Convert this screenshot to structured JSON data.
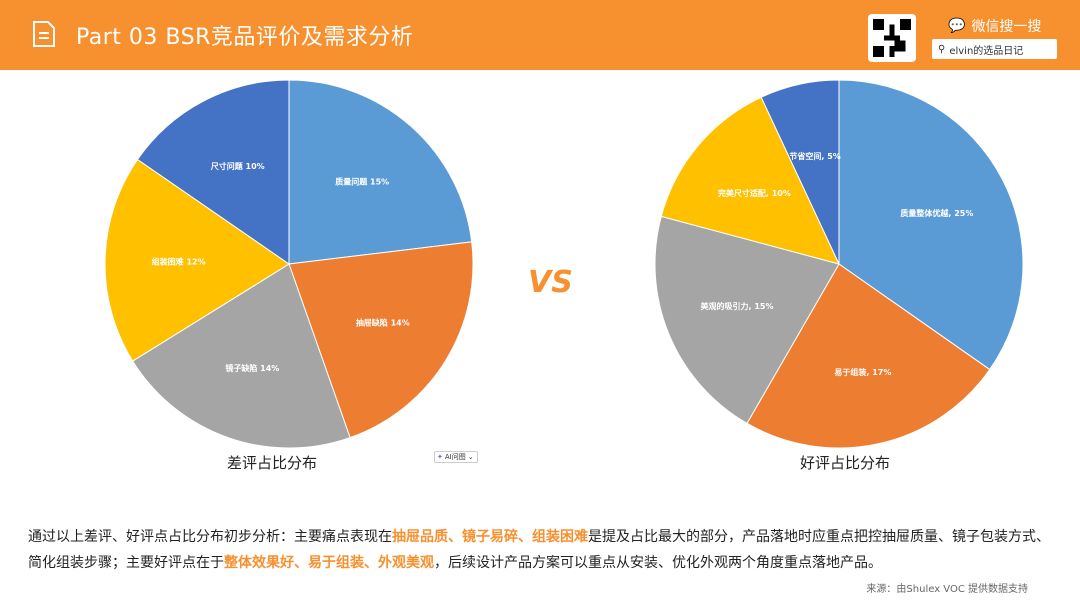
{
  "header": {
    "title": "Part 03  BSR竞品评价及需求分析",
    "wechat_label": "微信搜一搜",
    "search_value": "elvin的选品日记"
  },
  "vs": "VS",
  "ai_button": "AI问图",
  "colors": [
    "#5B9BD5",
    "#ED7D31",
    "#A5A5A5",
    "#FFC000",
    "#4472C4"
  ],
  "chart_data": [
    {
      "type": "pie",
      "title": "差评占比分布",
      "categories": [
        "质量问题",
        "抽屉缺陷",
        "镜子缺陷",
        "组装困难",
        "尺寸问题"
      ],
      "values": [
        15,
        14,
        14,
        12,
        10
      ],
      "labels": [
        "质量问题 15%",
        "抽屉缺陷 14%",
        "镜子缺陷 14%",
        "组装困难 12%",
        "尺寸问题 10%"
      ]
    },
    {
      "type": "pie",
      "title": "好评占比分布",
      "categories": [
        "质量整体优越",
        "易于组装",
        "美观的吸引力",
        "完美尺寸适配",
        "节省空间"
      ],
      "values": [
        25,
        17,
        15,
        10,
        5
      ],
      "labels": [
        "质量整体优越, 25%",
        "易于组装, 17%",
        "美观的吸引力, 15%",
        "完美尺寸适配, 10%",
        "节省空间, 5%"
      ]
    }
  ],
  "summary": {
    "p1": "通过以上差评、好评点占比分布初步分析：主要痛点表现在",
    "h1": "抽屉品质、镜子易碎、组装困难",
    "p2": "是提及占比最大的部分，产品落地时应重点把控抽屉质量、镜子包装方式、简化组装步骤；主要好评点在于",
    "h2": "整体效果好、易于组装、外观美观",
    "p3": "，后续设计产品方案可以重点从安装、优化外观两个角度重点落地产品。"
  },
  "source": "来源：由Shulex VOC 提供数据支持"
}
